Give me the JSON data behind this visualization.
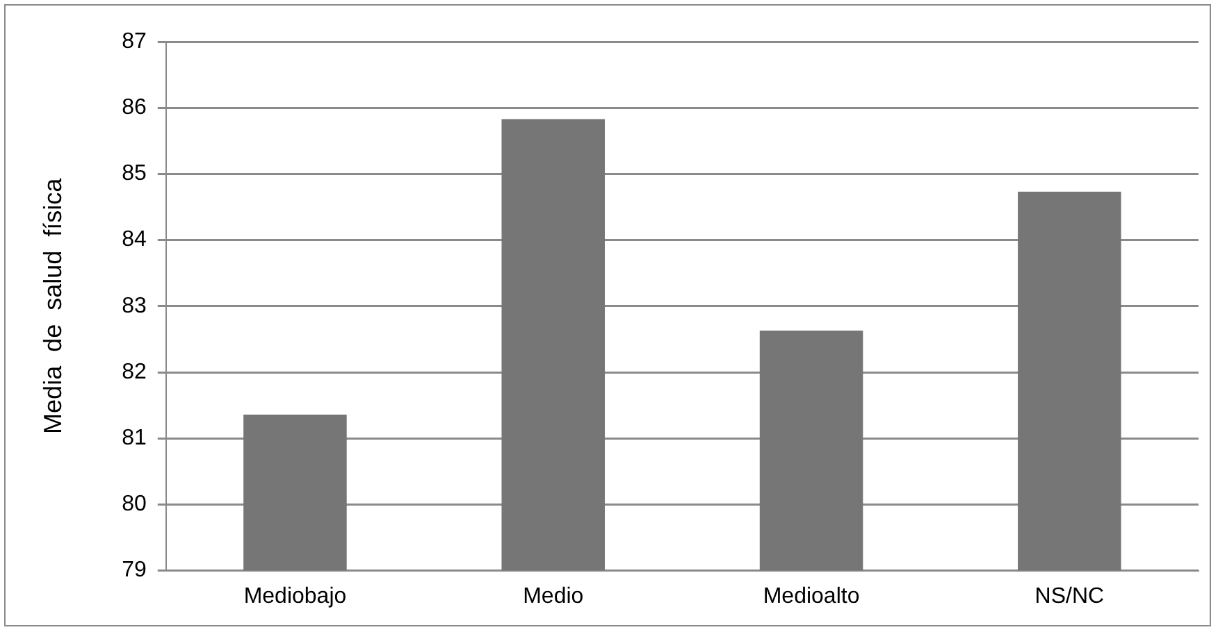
{
  "chart_data": {
    "type": "bar",
    "ylabel": "Media  de  salud  física",
    "categories": [
      "Mediobajo",
      "Medio",
      "Medioalto",
      "NS/NC"
    ],
    "series": [
      {
        "color": "#767676",
        "values": [
          81.36,
          85.83,
          82.63,
          84.73
        ]
      }
    ],
    "ylim": [
      79,
      87
    ],
    "yticks": [
      79,
      80,
      81,
      82,
      83,
      84,
      85,
      86,
      87
    ],
    "grid": "y",
    "legend": false
  }
}
